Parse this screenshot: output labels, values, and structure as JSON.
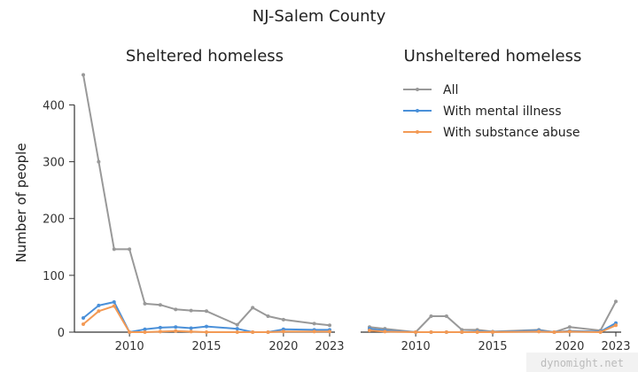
{
  "figure_title": "NJ-Salem County",
  "watermark": "dynomight.net",
  "colors": {
    "All": "#999999",
    "With mental illness": "#4a90d9",
    "With substance abuse": "#f39a55"
  },
  "chart_data": [
    {
      "type": "line",
      "title": "Sheltered homeless",
      "ylabel": "Number of people",
      "xlabel": "",
      "xlim": [
        2007,
        2023
      ],
      "ylim": [
        0,
        460
      ],
      "xticks": [
        2010,
        2015,
        2020,
        2023
      ],
      "yticks": [
        0,
        100,
        200,
        300,
        400
      ],
      "series": [
        {
          "name": "All",
          "x": [
            2007,
            2008,
            2009,
            2010,
            2011,
            2012,
            2013,
            2014,
            2015,
            2017,
            2018,
            2019,
            2020,
            2022,
            2023
          ],
          "values": [
            453,
            300,
            146,
            146,
            50,
            48,
            40,
            38,
            37,
            13,
            43,
            28,
            22,
            15,
            12
          ]
        },
        {
          "name": "With mental illness",
          "x": [
            2007,
            2008,
            2009,
            2010,
            2011,
            2012,
            2013,
            2014,
            2015,
            2017,
            2018,
            2019,
            2020,
            2022,
            2023
          ],
          "values": [
            25,
            47,
            53,
            0,
            5,
            8,
            9,
            7,
            10,
            6,
            0,
            0,
            5,
            4,
            4
          ]
        },
        {
          "name": "With substance abuse",
          "x": [
            2007,
            2008,
            2009,
            2010,
            2011,
            2012,
            2013,
            2014,
            2015,
            2017,
            2018,
            2019,
            2020,
            2022,
            2023
          ],
          "values": [
            14,
            37,
            46,
            0,
            0,
            1,
            2,
            1,
            0,
            0,
            0,
            0,
            1,
            1,
            1
          ]
        }
      ]
    },
    {
      "type": "line",
      "title": "Unsheltered homeless",
      "ylabel": "",
      "xlabel": "",
      "xlim": [
        2007,
        2023
      ],
      "ylim": [
        0,
        460
      ],
      "xticks": [
        2010,
        2015,
        2020,
        2023
      ],
      "yticks": [],
      "series": [
        {
          "name": "All",
          "x": [
            2007,
            2008,
            2010,
            2011,
            2012,
            2013,
            2014,
            2015,
            2018,
            2019,
            2020,
            2022,
            2023
          ],
          "values": [
            9,
            6,
            0,
            28,
            28,
            4,
            4,
            1,
            4,
            0,
            9,
            3,
            54
          ]
        },
        {
          "name": "With mental illness",
          "x": [
            2007,
            2008,
            2010,
            2011,
            2012,
            2013,
            2014,
            2015,
            2018,
            2019,
            2020,
            2022,
            2023
          ],
          "values": [
            6,
            3,
            0,
            0,
            0,
            0,
            1,
            0,
            3,
            0,
            2,
            1,
            16
          ]
        },
        {
          "name": "With substance abuse",
          "x": [
            2007,
            2008,
            2010,
            2011,
            2012,
            2013,
            2014,
            2015,
            2018,
            2019,
            2020,
            2022,
            2023
          ],
          "values": [
            3,
            1,
            0,
            0,
            0,
            0,
            0,
            0,
            1,
            0,
            1,
            0,
            12
          ]
        }
      ]
    }
  ],
  "legend": {
    "placement": "upper-right of Unsheltered homeless",
    "entries": [
      "All",
      "With mental illness",
      "With substance abuse"
    ]
  }
}
